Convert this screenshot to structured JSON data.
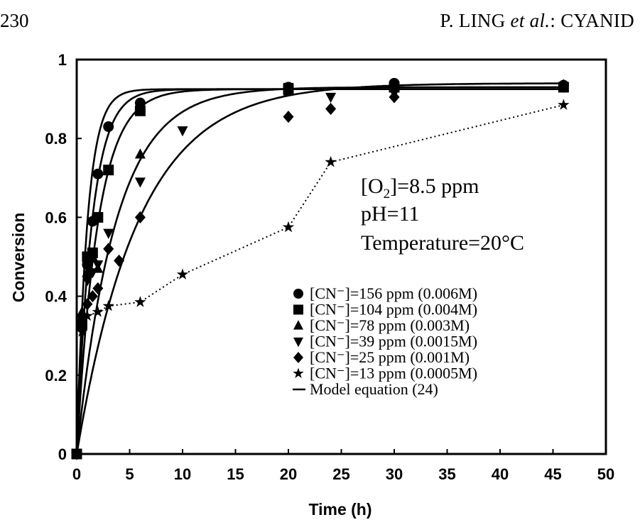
{
  "page": {
    "page_number": "230",
    "running_head_authors": "P. LING ",
    "running_head_etal": "et al.",
    "running_head_rest": ": CYANID"
  },
  "chart_data": {
    "type": "line",
    "xlabel": "Time (h)",
    "ylabel": "Conversion",
    "xlim": [
      0,
      50
    ],
    "ylim": [
      0,
      1
    ],
    "x_ticks": [
      "0",
      "5",
      "10",
      "15",
      "20",
      "25",
      "30",
      "35",
      "40",
      "45",
      "50"
    ],
    "y_ticks": [
      "0",
      "0.2",
      "0.4",
      "0.6",
      "0.8",
      "1"
    ],
    "grid": false,
    "legend_position": "lower-right",
    "conditions": {
      "o2_prefix": "[O",
      "o2_sub": "2",
      "o2_suffix": "]=8.5 ppm",
      "ph": "pH=11",
      "temperature": "Temperature=20°C"
    },
    "series": [
      {
        "name": "[CN⁻]=156 ppm (0.006M)",
        "marker": "circle",
        "x": [
          0,
          0.5,
          1,
          1.5,
          2,
          3,
          6,
          20,
          30,
          46
        ],
        "y": [
          0,
          0.32,
          0.48,
          0.59,
          0.71,
          0.83,
          0.89,
          0.93,
          0.94,
          0.935
        ]
      },
      {
        "name": "[CN⁻]=104 ppm (0.004M)",
        "marker": "square",
        "x": [
          0,
          0.5,
          1,
          1.5,
          2,
          3,
          6,
          20,
          30,
          46
        ],
        "y": [
          0,
          0.33,
          0.5,
          0.51,
          0.6,
          0.72,
          0.87,
          0.925,
          0.93,
          0.93
        ]
      },
      {
        "name": "[CN⁻]=78 ppm (0.003M)",
        "marker": "triangle-up",
        "x": [
          0,
          0.5,
          1,
          1.5,
          2,
          6,
          20,
          30,
          46
        ],
        "y": [
          0,
          0.36,
          0.46,
          0.5,
          0.47,
          0.76,
          0.92,
          0.93,
          0.93
        ]
      },
      {
        "name": "[CN⁻]=39 ppm (0.0015M)",
        "marker": "triangle-down",
        "x": [
          0,
          0.5,
          1,
          1.5,
          2,
          3,
          6,
          10,
          20,
          24,
          30,
          46
        ],
        "y": [
          0,
          0.34,
          0.44,
          0.46,
          0.48,
          0.56,
          0.69,
          0.82,
          0.93,
          0.905,
          0.915,
          0.93
        ]
      },
      {
        "name": "[CN⁻]=25 ppm (0.001M)",
        "marker": "diamond",
        "x": [
          0,
          0.5,
          1,
          1.5,
          2,
          3,
          4,
          6,
          20,
          24,
          30,
          46
        ],
        "y": [
          0,
          0.35,
          0.38,
          0.4,
          0.42,
          0.52,
          0.49,
          0.6,
          0.855,
          0.875,
          0.905,
          0.935
        ]
      },
      {
        "name": "[CN⁻]=13 ppm (0.0005M)",
        "marker": "star",
        "x": [
          0,
          0.5,
          1,
          2,
          3,
          6,
          10,
          20,
          24,
          46
        ],
        "y": [
          0,
          0.31,
          0.35,
          0.36,
          0.375,
          0.385,
          0.455,
          0.575,
          0.74,
          0.885
        ]
      }
    ],
    "model_label": "Model equation (24)",
    "model_curves": [
      {
        "a": 0.925,
        "k": 1.0
      },
      {
        "a": 0.925,
        "k": 0.7
      },
      {
        "a": 0.925,
        "k": 0.5
      },
      {
        "a": 0.93,
        "k": 0.27
      },
      {
        "a": 0.94,
        "k": 0.17
      }
    ]
  }
}
